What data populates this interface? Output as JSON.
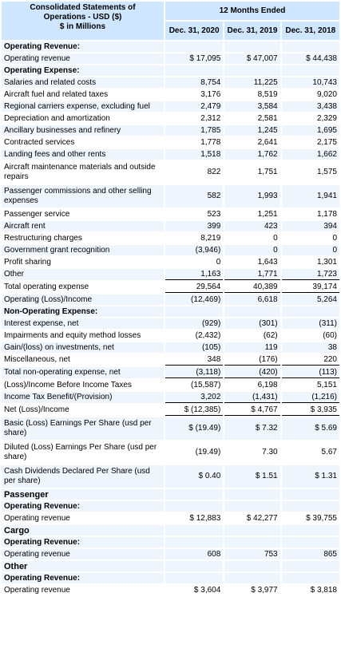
{
  "header": {
    "title_line1": "Consolidated Statements of",
    "title_line2": "Operations - USD ($)",
    "title_line3": "$ in Millions",
    "period": "12 Months Ended",
    "col1": "Dec. 31, 2020",
    "col2": "Dec. 31, 2019",
    "col3": "Dec. 31, 2018"
  },
  "rows": [
    {
      "label": "Operating Revenue:",
      "v": [
        "",
        "",
        ""
      ]
    },
    {
      "label": "Operating revenue",
      "v": [
        "$ 17,095",
        "$ 47,007",
        "$ 44,438"
      ]
    },
    {
      "label": "Operating Expense:",
      "v": [
        "",
        "",
        ""
      ]
    },
    {
      "label": "Salaries and related costs",
      "v": [
        "8,754",
        "11,225",
        "10,743"
      ]
    },
    {
      "label": "Aircraft fuel and related taxes",
      "v": [
        "3,176",
        "8,519",
        "9,020"
      ]
    },
    {
      "label": "Regional carriers expense, excluding fuel",
      "v": [
        "2,479",
        "3,584",
        "3,438"
      ]
    },
    {
      "label": "Depreciation and amortization",
      "v": [
        "2,312",
        "2,581",
        "2,329"
      ]
    },
    {
      "label": "Ancillary businesses and refinery",
      "v": [
        "1,785",
        "1,245",
        "1,695"
      ]
    },
    {
      "label": "Contracted services",
      "v": [
        "1,778",
        "2,641",
        "2,175"
      ]
    },
    {
      "label": "Landing fees and other rents",
      "v": [
        "1,518",
        "1,762",
        "1,662"
      ]
    },
    {
      "label": "Aircraft maintenance materials and outside repairs",
      "v": [
        "822",
        "1,751",
        "1,575"
      ]
    },
    {
      "label": "Passenger commissions and other selling expenses",
      "v": [
        "582",
        "1,993",
        "1,941"
      ]
    },
    {
      "label": "Passenger service",
      "v": [
        "523",
        "1,251",
        "1,178"
      ]
    },
    {
      "label": "Aircraft rent",
      "v": [
        "399",
        "423",
        "394"
      ]
    },
    {
      "label": "Restructuring charges",
      "v": [
        "8,219",
        "0",
        "0"
      ]
    },
    {
      "label": "Government grant recognition",
      "v": [
        "(3,946)",
        "0",
        "0"
      ]
    },
    {
      "label": "Profit sharing",
      "v": [
        "0",
        "1,643",
        "1,301"
      ]
    },
    {
      "label": "Other",
      "v": [
        "1,163",
        "1,771",
        "1,723"
      ]
    },
    {
      "label": "Total operating expense",
      "v": [
        "29,564",
        "40,389",
        "39,174"
      ]
    },
    {
      "label": "Operating (Loss)/Income",
      "v": [
        "(12,469)",
        "6,618",
        "5,264"
      ]
    },
    {
      "label": "Non-Operating Expense:",
      "v": [
        "",
        "",
        ""
      ]
    },
    {
      "label": "Interest expense, net",
      "v": [
        "(929)",
        "(301)",
        "(311)"
      ]
    },
    {
      "label": "Impairments and equity method losses",
      "v": [
        "(2,432)",
        "(62)",
        "(60)"
      ]
    },
    {
      "label": "Gain/(loss) on investments, net",
      "v": [
        "(105)",
        "119",
        "38"
      ]
    },
    {
      "label": "Miscellaneous, net",
      "v": [
        "348",
        "(176)",
        "220"
      ]
    },
    {
      "label": "Total non-operating expense, net",
      "v": [
        "(3,118)",
        "(420)",
        "(113)"
      ]
    },
    {
      "label": "(Loss)/Income Before Income Taxes",
      "v": [
        "(15,587)",
        "6,198",
        "5,151"
      ]
    },
    {
      "label": "Income Tax Benefit/(Provision)",
      "v": [
        "3,202",
        "(1,431)",
        "(1,216)"
      ]
    },
    {
      "label": "Net (Loss)/Income",
      "v": [
        "$ (12,385)",
        "$ 4,767",
        "$ 3,935"
      ]
    },
    {
      "label": "Basic (Loss) Earnings Per Share (usd per share)",
      "v": [
        "$ (19.49)",
        "$ 7.32",
        "$ 5.69"
      ]
    },
    {
      "label": "Diluted (Loss) Earnings Per Share (usd per share)",
      "v": [
        "(19.49)",
        "7.30",
        "5.67"
      ]
    },
    {
      "label": "Cash Dividends Declared Per Share (usd per share)",
      "v": [
        "$ 0.40",
        "$ 1.51",
        "$ 1.31"
      ]
    },
    {
      "label": "Passenger",
      "v": [
        "",
        "",
        ""
      ]
    },
    {
      "label": "Operating Revenue:",
      "v": [
        "",
        "",
        ""
      ]
    },
    {
      "label": "Operating revenue",
      "v": [
        "$ 12,883",
        "$ 42,277",
        "$ 39,755"
      ]
    },
    {
      "label": "Cargo",
      "v": [
        "",
        "",
        ""
      ]
    },
    {
      "label": "Operating Revenue:",
      "v": [
        "",
        "",
        ""
      ]
    },
    {
      "label": "Operating revenue",
      "v": [
        "608",
        "753",
        "865"
      ]
    },
    {
      "label": "Other",
      "v": [
        "",
        "",
        ""
      ]
    },
    {
      "label": "Operating Revenue:",
      "v": [
        "",
        "",
        ""
      ]
    },
    {
      "label": "Operating revenue",
      "v": [
        "$ 3,604",
        "$ 3,977",
        "$ 3,818"
      ]
    }
  ]
}
